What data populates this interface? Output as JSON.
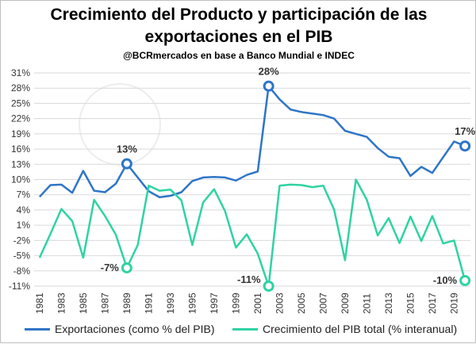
{
  "chart_data": {
    "type": "line",
    "title_line1": "Crecimiento del Producto y participación de las",
    "title_line2": "exportaciones en el PIB",
    "subtitle": "@BCRmercados en base a Banco Mundial e INDEC",
    "x": [
      1981,
      1982,
      1983,
      1984,
      1985,
      1986,
      1987,
      1988,
      1989,
      1990,
      1991,
      1992,
      1993,
      1994,
      1995,
      1996,
      1997,
      1998,
      1999,
      2000,
      2001,
      2002,
      2003,
      2004,
      2005,
      2006,
      2007,
      2008,
      2009,
      2010,
      2011,
      2012,
      2013,
      2014,
      2015,
      2016,
      2017,
      2018,
      2019,
      2020
    ],
    "x_tick_labels": [
      "1981",
      "1983",
      "1985",
      "1987",
      "1989",
      "1991",
      "1993",
      "1995",
      "1997",
      "1999",
      "2001",
      "2003",
      "2005",
      "2007",
      "2009",
      "2011",
      "2013",
      "2015",
      "2017",
      "2019"
    ],
    "y_ticks": [
      -11,
      -8,
      -5,
      -2,
      1,
      4,
      7,
      10,
      13,
      16,
      19,
      22,
      25,
      28,
      31
    ],
    "ylim": [
      -11,
      31
    ],
    "y_format": "percent",
    "grid": true,
    "legend_position": "bottom",
    "series": [
      {
        "name": "Exportaciones (como % del PIB)",
        "color": "#2e75c7",
        "values": [
          6.6,
          8.9,
          9.0,
          7.4,
          11.7,
          7.8,
          7.5,
          9.2,
          13.1,
          10.4,
          7.7,
          6.5,
          6.8,
          7.5,
          9.7,
          10.4,
          10.5,
          10.4,
          9.8,
          10.9,
          11.6,
          28.4,
          25.8,
          23.8,
          23.3,
          23.0,
          22.7,
          22.0,
          19.6,
          19.0,
          18.4,
          16.2,
          14.5,
          14.2,
          10.7,
          12.5,
          11.3,
          14.4,
          17.5,
          16.6
        ]
      },
      {
        "name": "Crecimiento del PIB total (% interanual)",
        "color": "#2fd3a3",
        "values": [
          -5.4,
          -0.7,
          4.2,
          1.8,
          -5.4,
          6.0,
          2.8,
          -0.9,
          -7.4,
          -2.9,
          8.8,
          7.8,
          8.0,
          5.9,
          -2.9,
          5.5,
          8.1,
          3.8,
          -3.4,
          -0.8,
          -4.6,
          -11.0,
          8.8,
          9.0,
          8.9,
          8.5,
          8.8,
          4.1,
          -5.9,
          10.0,
          6.0,
          -1.0,
          2.4,
          -2.5,
          2.7,
          -2.1,
          2.8,
          -2.6,
          -2.0,
          -9.9
        ]
      }
    ],
    "annotations": [
      {
        "label": "13%",
        "year": 1989,
        "series": 0
      },
      {
        "label": "28%",
        "year": 2002,
        "series": 0
      },
      {
        "label": "17%",
        "year": 2020,
        "series": 0
      },
      {
        "label": "-7%",
        "year": 1989,
        "series": 1
      },
      {
        "label": "-11%",
        "year": 2002,
        "series": 1
      },
      {
        "label": "-10%",
        "year": 2020,
        "series": 1
      }
    ]
  }
}
